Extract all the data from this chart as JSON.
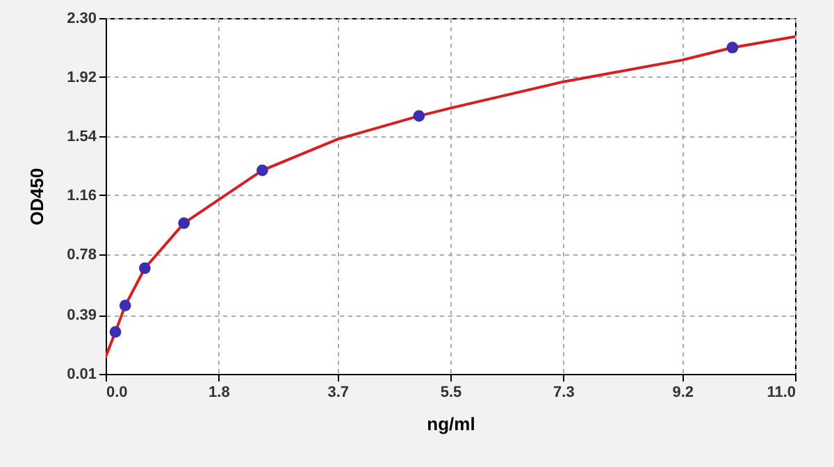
{
  "chart_data": {
    "type": "scatter",
    "xlabel": "ng/ml",
    "ylabel": "OD450",
    "xlim": [
      0,
      11
    ],
    "ylim": [
      0.01,
      2.3
    ],
    "xticks": [
      {
        "value": 0,
        "label": "0.0"
      },
      1.8,
      3.7,
      5.5,
      7.3,
      9.2,
      {
        "value": 11,
        "label": "11.0"
      }
    ],
    "yticks": [
      0.01,
      0.39,
      0.78,
      1.16,
      1.54,
      1.92,
      {
        "value": 2.3,
        "label": "2.30"
      }
    ],
    "grid": true,
    "series": [
      {
        "type": "line",
        "color": "#d42020",
        "line_style": "solid",
        "x": [
          0,
          0.156,
          0.3125,
          0.625,
          1.25,
          1.8,
          2.5,
          3.7,
          5,
          5.5,
          7.3,
          9.2,
          10,
          11
        ],
        "values": [
          0.12,
          0.28,
          0.45,
          0.69,
          0.98,
          1.13,
          1.32,
          1.52,
          1.67,
          1.72,
          1.89,
          2.03,
          2.11,
          2.18
        ]
      },
      {
        "type": "scatter",
        "color": "#3a2fb0",
        "marker": "circle",
        "x": [
          0.156,
          0.3125,
          0.625,
          1.25,
          2.5,
          5,
          10
        ],
        "values": [
          0.28,
          0.45,
          0.69,
          0.98,
          1.32,
          1.67,
          2.11
        ]
      }
    ]
  }
}
